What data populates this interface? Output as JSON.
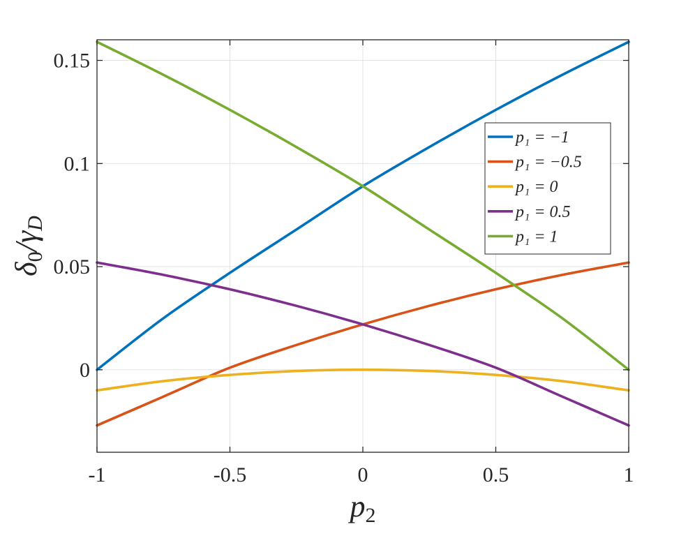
{
  "chart_data": {
    "type": "line",
    "title": "",
    "xlabel": "p",
    "xlabel_sub": "2",
    "ylabel": "δ",
    "ylabel_sub": "0",
    "ylabel_mid": "/γ",
    "ylabel_sub2": "D",
    "xlim": [
      -1,
      1
    ],
    "ylim": [
      -0.04,
      0.16
    ],
    "xticks": [
      -1,
      -0.5,
      0,
      0.5,
      1
    ],
    "xtick_labels": [
      "-1",
      "-0.5",
      "0",
      "0.5",
      "1"
    ],
    "yticks": [
      0,
      0.05,
      0.1,
      0.15
    ],
    "ytick_labels": [
      "0",
      "0.05",
      "0.1",
      "0.15"
    ],
    "grid": true,
    "legend_position": "upper-right",
    "x": [
      -1,
      -0.75,
      -0.5,
      -0.25,
      0,
      0.25,
      0.5,
      0.75,
      1
    ],
    "series": [
      {
        "name": "p₁ = −1",
        "color": "#0072BD",
        "values": [
          0.0,
          0.025,
          0.047,
          0.068,
          0.089,
          0.108,
          0.126,
          0.143,
          0.159
        ]
      },
      {
        "name": "p₁ = −0.5",
        "color": "#D95319",
        "values": [
          -0.027,
          -0.013,
          0.001,
          0.012,
          0.022,
          0.031,
          0.039,
          0.046,
          0.052
        ]
      },
      {
        "name": "p₁ = 0",
        "color": "#EDB120",
        "values": [
          -0.01,
          -0.0055,
          -0.0025,
          -0.0006,
          0.0,
          -0.0006,
          -0.0025,
          -0.0055,
          -0.01
        ]
      },
      {
        "name": "p₁ = 0.5",
        "color": "#7E2F8E",
        "values": [
          0.052,
          0.046,
          0.039,
          0.031,
          0.022,
          0.012,
          0.001,
          -0.013,
          -0.027
        ]
      },
      {
        "name": "p₁ = 1",
        "color": "#77AC30",
        "values": [
          0.159,
          0.143,
          0.126,
          0.108,
          0.089,
          0.068,
          0.047,
          0.025,
          0.0
        ]
      }
    ]
  }
}
